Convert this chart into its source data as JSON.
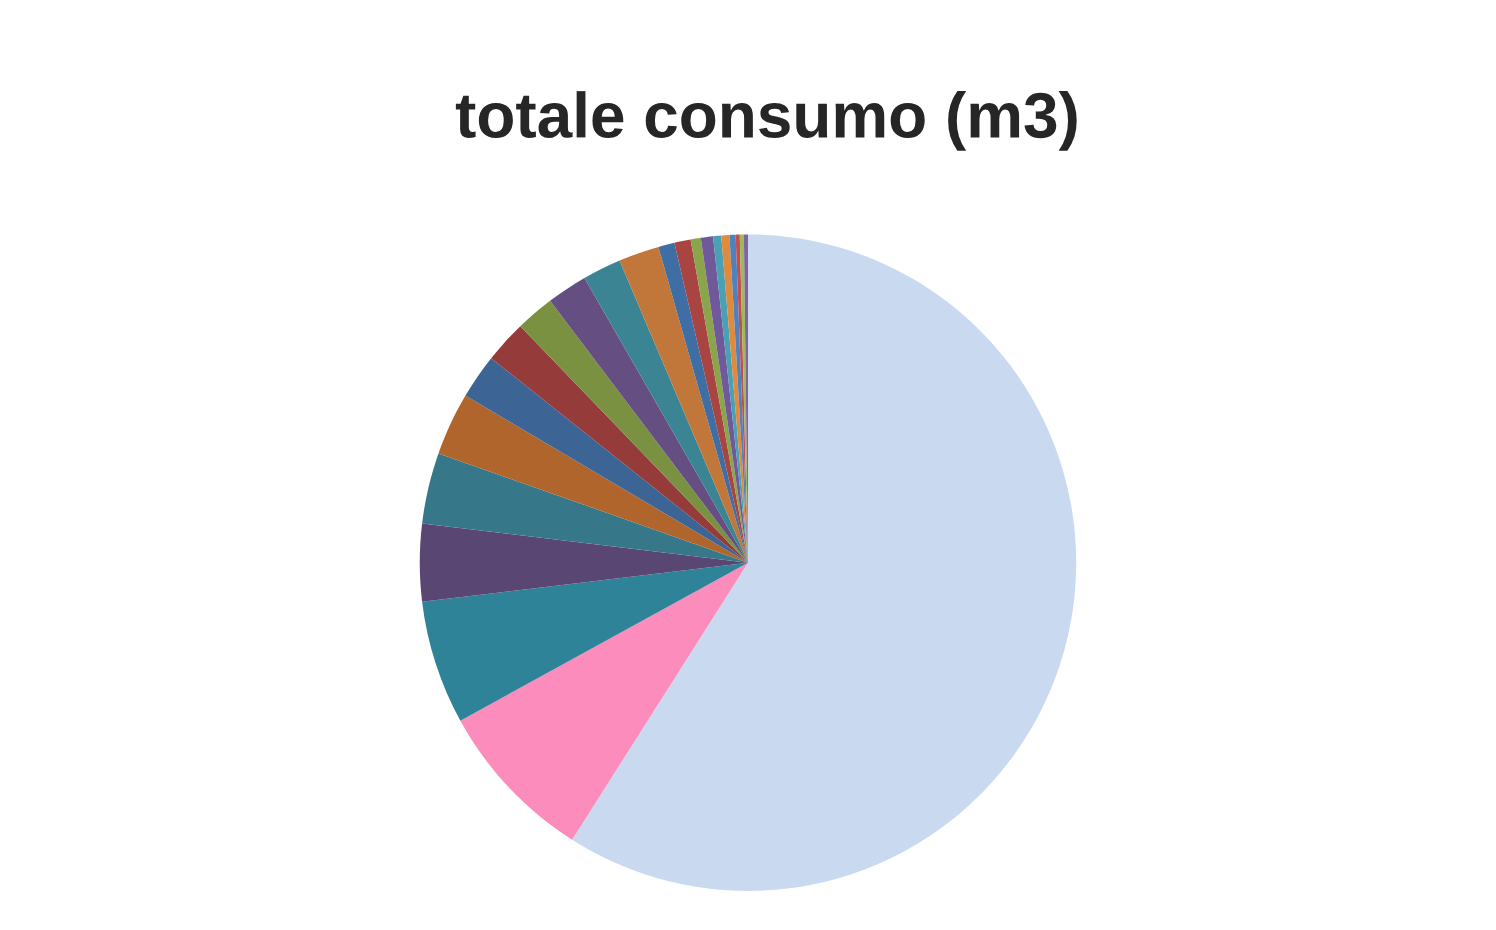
{
  "chart_data": {
    "type": "pie",
    "title": "totale consumo (m3)",
    "categories": [
      null,
      null,
      null,
      null,
      null,
      null,
      null,
      null,
      null,
      null,
      null,
      null,
      null,
      null,
      null,
      null,
      null,
      null,
      null,
      null,
      null,
      null
    ],
    "values": [
      59.0,
      8.0,
      6.1,
      3.8,
      3.5,
      3.1,
      2.2,
      2.1,
      1.9,
      2.0,
      1.9,
      2.0,
      0.8,
      0.8,
      0.5,
      0.6,
      0.4,
      0.4,
      0.3,
      0.2,
      0.2,
      0.2
    ],
    "colors": [
      "#c9daf0",
      "#fb8cbb",
      "#2e8398",
      "#5a4673",
      "#36788a",
      "#b0652c",
      "#3c6596",
      "#953b3a",
      "#7a9142",
      "#654f82",
      "#3a8494",
      "#c1763a",
      "#3f6ea5",
      "#a84442",
      "#8aa54b",
      "#70599a",
      "#4aa1b4",
      "#e08a3c",
      "#4f81bd",
      "#c0504d",
      "#9bbb59",
      "#8064a2"
    ]
  }
}
